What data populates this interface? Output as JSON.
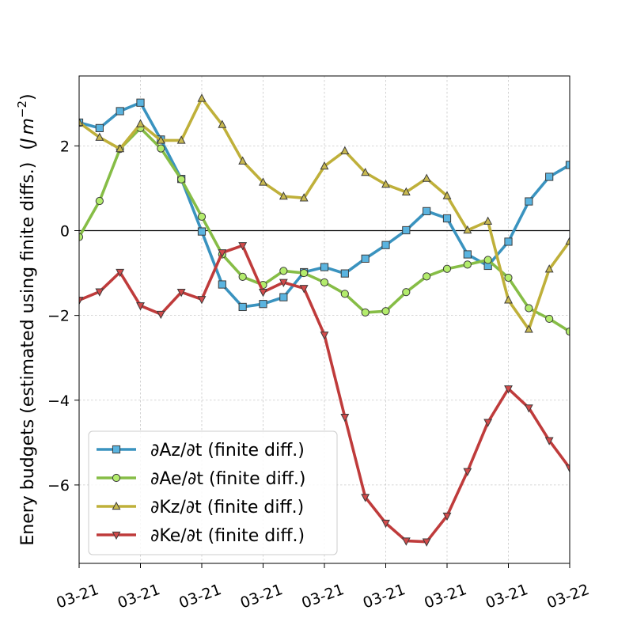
{
  "chart_data": {
    "type": "line",
    "title": "",
    "xlabel": "",
    "ylabel": "Enery budgets (estimated using finite diffs.) (J m^-2)",
    "ylabel_main": "Enery budgets (estimated using finite diffs.)",
    "ylabel_unit_open": "(",
    "ylabel_unit_J": "J",
    "ylabel_unit_m": "m",
    "ylabel_unit_exp": "−2",
    "ylabel_unit_close": ")",
    "x_tick_labels": [
      "03-21",
      "03-21",
      "03-21",
      "03-21",
      "03-21",
      "03-21",
      "03-21",
      "03-21",
      "03-22"
    ],
    "x_tick_positions": [
      0,
      3,
      6,
      9,
      12,
      15,
      18,
      21,
      24
    ],
    "xlim": [
      0,
      24
    ],
    "yticks": [
      -6,
      -4,
      -2,
      0,
      2
    ],
    "ytick_labels": [
      "−6",
      "−4",
      "−2",
      "0",
      "2"
    ],
    "ylim": [
      -7.85,
      3.65
    ],
    "grid": true,
    "zero_line": true,
    "legend_position": "lower-left",
    "x": [
      0,
      1,
      2,
      3,
      4,
      5,
      6,
      7,
      8,
      9,
      10,
      11,
      12,
      13,
      14,
      15,
      16,
      17,
      18,
      19,
      20,
      21,
      22,
      23,
      24
    ],
    "series": [
      {
        "name": "∂Az/∂t (finite diff.)",
        "line_color": "#3a93bf",
        "marker_color": "#5ab4e0",
        "marker": "square",
        "values": [
          2.55,
          2.42,
          2.82,
          3.02,
          2.15,
          1.22,
          -0.02,
          -1.27,
          -1.8,
          -1.73,
          -1.57,
          -0.98,
          -0.86,
          -1.01,
          -0.66,
          -0.34,
          0.01,
          0.46,
          0.29,
          -0.56,
          -0.83,
          -0.26,
          0.69,
          1.27,
          1.55
        ]
      },
      {
        "name": "∂Ae/∂t (finite diff.)",
        "line_color": "#86bd46",
        "marker_color": "#b3ec6c",
        "marker": "circle",
        "values": [
          -0.15,
          0.7,
          1.93,
          2.42,
          1.94,
          1.21,
          0.33,
          -0.56,
          -1.09,
          -1.28,
          -0.95,
          -1.0,
          -1.22,
          -1.49,
          -1.93,
          -1.9,
          -1.45,
          -1.08,
          -0.9,
          -0.8,
          -0.69,
          -1.11,
          -1.83,
          -2.08,
          -2.38
        ]
      },
      {
        "name": "∂Kz/∂t (finite diff.)",
        "line_color": "#bfb03a",
        "marker_color": "#c8b950",
        "marker": "triangle-up",
        "values": [
          2.55,
          2.2,
          1.93,
          2.52,
          2.13,
          2.13,
          3.12,
          2.5,
          1.64,
          1.14,
          0.81,
          0.77,
          1.52,
          1.88,
          1.37,
          1.09,
          0.91,
          1.23,
          0.82,
          0.01,
          0.22,
          -1.64,
          -2.33,
          -0.91,
          -0.25
        ]
      },
      {
        "name": "∂Ke/∂t (finite diff.)",
        "line_color": "#bf3b3b",
        "marker_color": "#d24a4a",
        "marker": "triangle-down",
        "values": [
          -1.64,
          -1.44,
          -0.98,
          -1.77,
          -1.97,
          -1.45,
          -1.62,
          -0.52,
          -0.35,
          -1.45,
          -1.22,
          -1.36,
          -2.46,
          -4.4,
          -6.29,
          -6.9,
          -7.32,
          -7.34,
          -6.73,
          -5.68,
          -4.52,
          -3.73,
          -4.18,
          -4.95,
          -5.6
        ]
      }
    ]
  }
}
